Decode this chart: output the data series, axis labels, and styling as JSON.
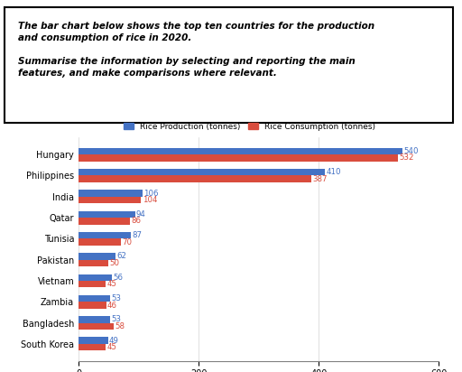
{
  "title_line1": "The bar chart below shows the top ten countries for the production",
  "title_line2": "and consumption of rice in 2020.",
  "title_line3": "",
  "title_line4": "Summarise the information by selecting and reporting the main",
  "title_line5": "features, and make comparisons where relevant.",
  "countries": [
    "Hungary",
    "Philippines",
    "India",
    "Qatar",
    "Tunisia",
    "Pakistan",
    "Vietnam",
    "Zambia",
    "Bangladesh",
    "South Korea"
  ],
  "production": [
    540,
    410,
    106,
    94,
    87,
    62,
    56,
    53,
    53,
    49
  ],
  "consumption": [
    532,
    387,
    104,
    86,
    70,
    50,
    45,
    46,
    58,
    45
  ],
  "production_color": "#4472C4",
  "consumption_color": "#D94C3D",
  "xlim": [
    0,
    600
  ],
  "xticks": [
    0,
    200,
    400,
    600
  ],
  "legend_labels": [
    "Rice Production (tonnes)",
    "Rice Consumption (tonnes)"
  ],
  "bar_height": 0.32,
  "background_color": "#FFFFFF",
  "country_fontsize": 7.0,
  "annotation_fontsize": 6.2,
  "legend_fontsize": 6.5,
  "xtick_fontsize": 7.0
}
